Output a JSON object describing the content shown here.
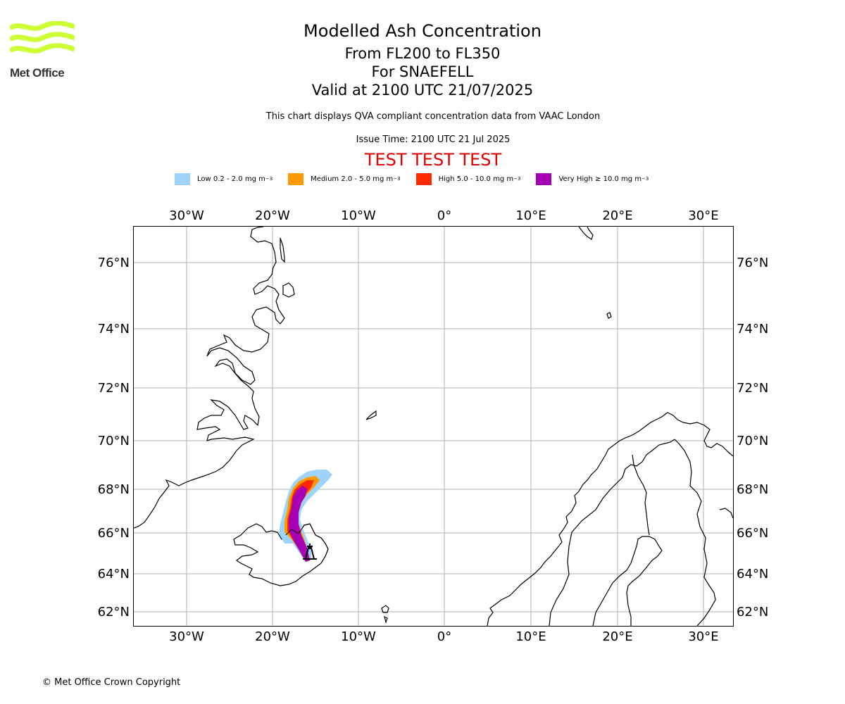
{
  "logo": {
    "text": "Met Office",
    "color": "#ccff33"
  },
  "header": {
    "title": "Modelled Ash Concentration",
    "levels": "From FL200 to FL350",
    "volcano": "For SNAEFELL",
    "valid": "Valid at 2100 UTC 21/07/2025",
    "description": "This chart displays QVA compliant concentration data from VAAC London",
    "issue_time": "Issue Time: 2100 UTC 21 Jul 2025",
    "test_banner": "TEST TEST TEST"
  },
  "legend": [
    {
      "label": "Low 0.2 - 2.0 mg m",
      "color": "#9fd3fb"
    },
    {
      "label": "Medium 2.0 - 5.0 mg m",
      "color": "#ff9a00"
    },
    {
      "label": "High 5.0 - 10.0 mg m",
      "color": "#ff2a00"
    },
    {
      "label": "Very High ≥ 10.0 mg m",
      "color": "#a600b3"
    }
  ],
  "legend_exponent": "−3",
  "map": {
    "lon_labels": [
      "30°W",
      "20°W",
      "10°W",
      "0°",
      "10°E",
      "20°E",
      "30°E"
    ],
    "lat_labels": [
      "76°N",
      "74°N",
      "72°N",
      "70°N",
      "68°N",
      "66°N",
      "64°N",
      "62°N"
    ],
    "volcano_marker": "volcano-icon"
  },
  "footer": {
    "copyright": "© Met Office Crown Copyright"
  }
}
